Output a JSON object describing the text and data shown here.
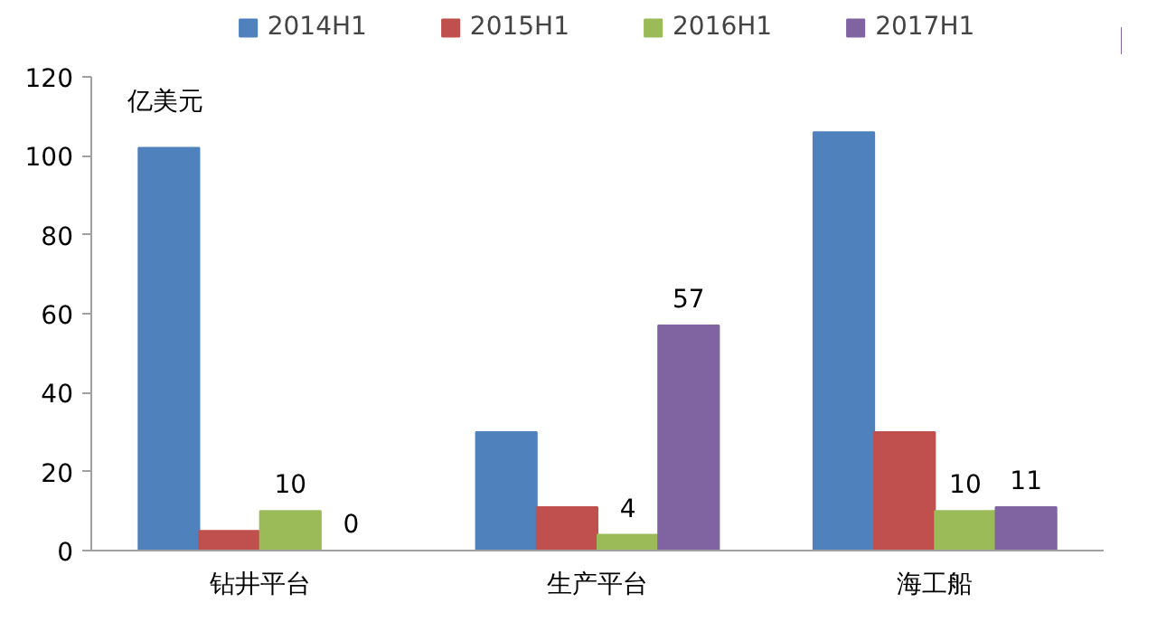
{
  "chart_data": {
    "type": "bar",
    "ylabel": "亿美元",
    "categories": [
      "钻井平台",
      "生产平台",
      "海工船"
    ],
    "series": [
      {
        "name": "2014H1",
        "color": "#4f81bd",
        "values": [
          102,
          30,
          106
        ]
      },
      {
        "name": "2015H1",
        "color": "#c0504d",
        "values": [
          5,
          11,
          30
        ]
      },
      {
        "name": "2016H1",
        "color": "#9bbb59",
        "values": [
          10,
          4,
          10
        ],
        "value_labels": [
          "10",
          "4",
          "10"
        ]
      },
      {
        "name": "2017H1",
        "color": "#8064a2",
        "values": [
          0,
          57,
          11
        ],
        "value_labels": [
          "0",
          "57",
          "11"
        ]
      }
    ],
    "ylim": [
      0,
      120
    ],
    "yticks": [
      0,
      20,
      40,
      60,
      80,
      100,
      120
    ],
    "grid": false,
    "legend": "top"
  }
}
